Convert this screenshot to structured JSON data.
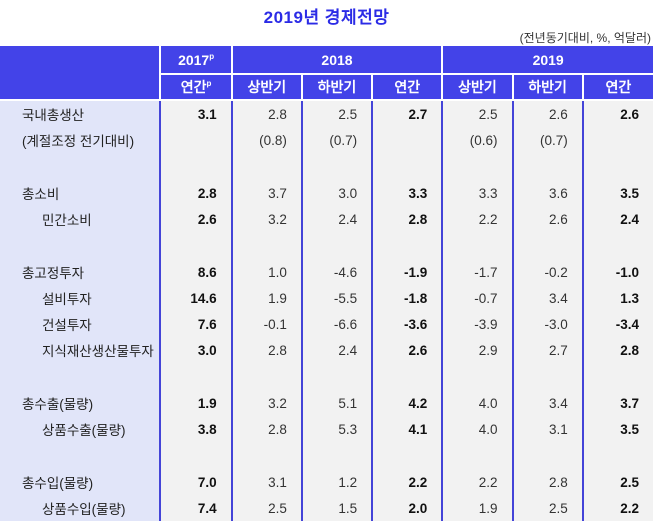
{
  "title": "2019년 경제전망",
  "unit_note": "(전년동기대비, %, 억달러)",
  "colors": {
    "header_bg": "#4343e8",
    "title": "#2b2be6",
    "label_bg": "#e1e5f9",
    "value_bg": "#f2f2f2",
    "grid_line": "#4444d8"
  },
  "header": {
    "year_2017": "2017",
    "year_2017_sup": "p",
    "year_2018": "2018",
    "year_2019": "2019",
    "sub": {
      "y2017_annual": "연간",
      "y2017_annual_sup": "p",
      "y2018_h1": "상반기",
      "y2018_h2": "하반기",
      "y2018_annual": "연간",
      "y2019_h1": "상반기",
      "y2019_h2": "하반기",
      "y2019_annual": "연간"
    }
  },
  "table": {
    "rows": [
      {
        "label": "국내총생산",
        "indent": 0,
        "values": [
          "3.1",
          "2.8",
          "2.5",
          "2.7",
          "2.5",
          "2.6",
          "2.6"
        ]
      },
      {
        "label": "(계절조정 전기대비)",
        "indent": 0,
        "values": [
          "",
          "(0.8)",
          "(0.7)",
          "",
          "(0.6)",
          "(0.7)",
          ""
        ]
      },
      {
        "label": "총소비",
        "indent": 0,
        "values": [
          "2.8",
          "3.7",
          "3.0",
          "3.3",
          "3.3",
          "3.6",
          "3.5"
        ]
      },
      {
        "label": "민간소비",
        "indent": 1,
        "values": [
          "2.6",
          "3.2",
          "2.4",
          "2.8",
          "2.2",
          "2.6",
          "2.4"
        ]
      },
      {
        "label": "총고정투자",
        "indent": 0,
        "values": [
          "8.6",
          "1.0",
          "-4.6",
          "-1.9",
          "-1.7",
          "-0.2",
          "-1.0"
        ]
      },
      {
        "label": "설비투자",
        "indent": 1,
        "values": [
          "14.6",
          "1.9",
          "-5.5",
          "-1.8",
          "-0.7",
          "3.4",
          "1.3"
        ]
      },
      {
        "label": "건설투자",
        "indent": 1,
        "values": [
          "7.6",
          "-0.1",
          "-6.6",
          "-3.6",
          "-3.9",
          "-3.0",
          "-3.4"
        ]
      },
      {
        "label": "지식재산생산물투자",
        "indent": 1,
        "values": [
          "3.0",
          "2.8",
          "2.4",
          "2.6",
          "2.9",
          "2.7",
          "2.8"
        ]
      },
      {
        "label": "총수출(물량)",
        "indent": 0,
        "values": [
          "1.9",
          "3.2",
          "5.1",
          "4.2",
          "4.0",
          "3.4",
          "3.7"
        ]
      },
      {
        "label": "상품수출(물량)",
        "indent": 1,
        "values": [
          "3.8",
          "2.8",
          "5.3",
          "4.1",
          "4.0",
          "3.1",
          "3.5"
        ]
      },
      {
        "label": "총수입(물량)",
        "indent": 0,
        "values": [
          "7.0",
          "3.1",
          "1.2",
          "2.2",
          "2.2",
          "2.8",
          "2.5"
        ]
      },
      {
        "label": "상품수입(물량)",
        "indent": 1,
        "values": [
          "7.4",
          "2.5",
          "1.5",
          "2.0",
          "1.9",
          "2.5",
          "2.2"
        ]
      }
    ]
  }
}
